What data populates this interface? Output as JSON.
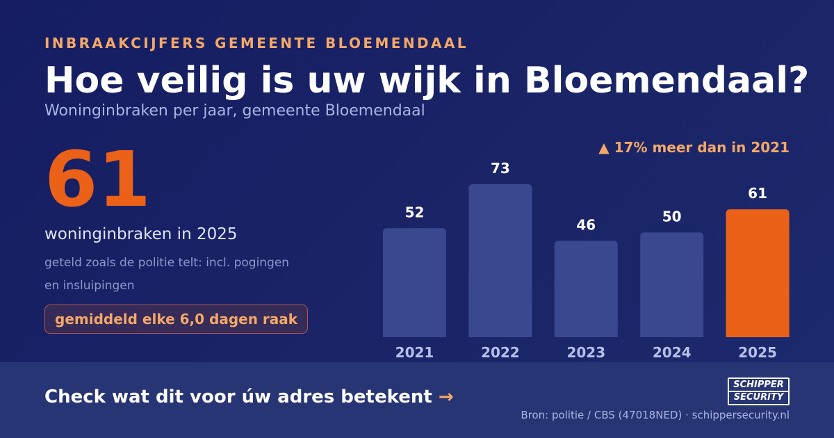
{
  "header": {
    "kicker": "INBRAAKCIJFERS GEMEENTE BLOEMENDAAL",
    "title": "Hoe veilig is uw wijk in Bloemendaal?",
    "subtitle": "Woninginbraken per jaar, gemeente Bloemendaal"
  },
  "highlight": {
    "value": "61",
    "label": "woninginbraken in 2025",
    "note": "geteld zoals de politie telt: incl. pogingen en insluipingen",
    "badge": "gemiddeld elke 6,0 dagen raak"
  },
  "change_note": "▲ 17% meer dan in 2021",
  "chart_data": {
    "type": "bar",
    "categories": [
      "2021",
      "2022",
      "2023",
      "2024",
      "2025"
    ],
    "values": [
      52,
      73,
      46,
      50,
      61
    ],
    "data_labels": [
      "52",
      "73",
      "46",
      "50",
      "61"
    ],
    "ylim": [
      0,
      73
    ],
    "grid": false,
    "highlight_category": "2025",
    "colors": {
      "bar": "#3a4890",
      "highlight": "#ec6118",
      "value_label": "#ffffff",
      "tick_label": "#b7c0ea"
    }
  },
  "footer": {
    "cta": "Check wat dit voor úw adres betekent",
    "cta_arrow": "→",
    "logo_line1": "SCHIPPER",
    "logo_line2": "SECURITY",
    "source": "Bron: politie / CBS (47018NED) · schippersecurity.nl"
  },
  "colors": {
    "background": "#1a2466",
    "footer": "#283574",
    "accent": "#ec6118",
    "accent_soft": "#f4a868"
  }
}
